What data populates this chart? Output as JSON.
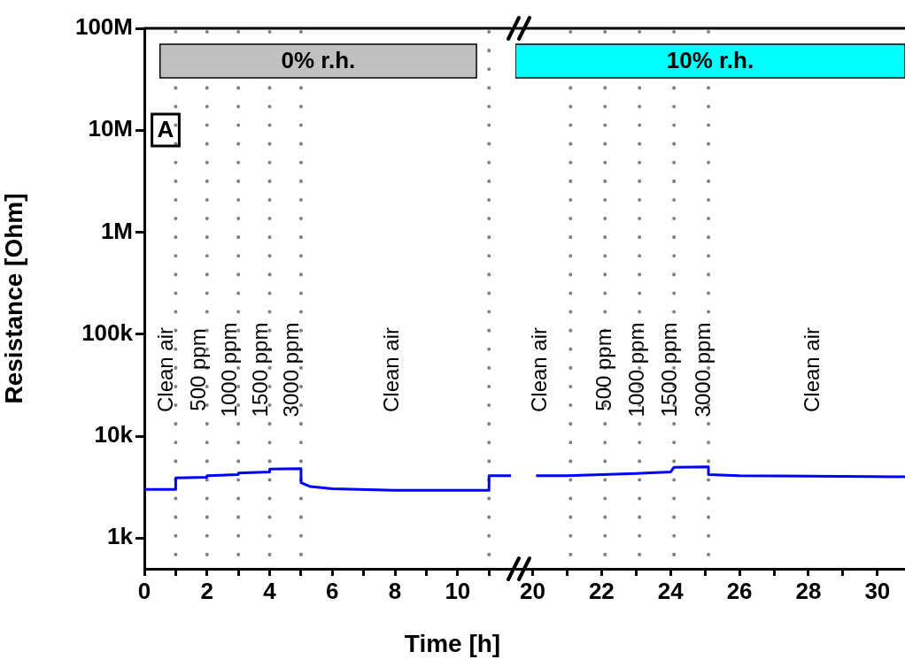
{
  "chart_data": [
    {
      "type": "line",
      "xlabel": "Time [h]",
      "ylabel": "Resistance [Ohm]",
      "log": "y",
      "grid": false,
      "marker": "none",
      "line_style": "solid",
      "xlim": [
        0,
        11.7
      ],
      "ylim": [
        500,
        100000000
      ],
      "xticks": [
        0,
        {
          "value": 1,
          "label": null
        },
        2,
        {
          "value": 3,
          "label": null
        },
        4,
        {
          "value": 5,
          "label": null
        },
        6,
        {
          "value": 7,
          "label": null
        },
        8,
        {
          "value": 9,
          "label": null
        },
        10,
        {
          "value": 11,
          "label": null
        }
      ],
      "yticks": [
        {
          "value": 1000,
          "label": "1k"
        },
        {
          "value": 10000,
          "label": "10k"
        },
        {
          "value": 100000,
          "label": "100k"
        },
        {
          "value": 1000000,
          "label": "1M"
        },
        {
          "value": 10000000,
          "label": "10M"
        },
        {
          "value": 100000000,
          "label": "100M"
        }
      ],
      "series": [
        {
          "type": "line",
          "color": "#0000ff",
          "x": [
            0,
            1,
            1,
            2,
            2,
            3,
            3,
            4,
            4,
            5,
            5,
            5.3,
            6,
            8,
            11,
            11,
            11.7
          ],
          "values": [
            3000,
            3000,
            3900,
            3950,
            4100,
            4200,
            4350,
            4450,
            4750,
            4800,
            3500,
            3200,
            3050,
            2950,
            2950,
            4100,
            4100
          ]
        }
      ],
      "ref_lines": [
        {
          "axis": "x",
          "value": 1,
          "color": "#808080",
          "line_style": "dotted"
        },
        {
          "axis": "x",
          "value": 2,
          "color": "#808080",
          "line_style": "dotted"
        },
        {
          "axis": "x",
          "value": 3,
          "color": "#808080",
          "line_style": "dotted"
        },
        {
          "axis": "x",
          "value": 4,
          "color": "#808080",
          "line_style": "dotted"
        },
        {
          "axis": "x",
          "value": 5,
          "color": "#808080",
          "line_style": "dotted"
        },
        {
          "axis": "x",
          "value": 11,
          "color": "#808080",
          "line_style": "dotted"
        }
      ],
      "bands": [
        {
          "axis": "x",
          "from": 0.5,
          "to": 10.6,
          "label": "0% r.h.",
          "color": "#c0c0c0"
        }
      ],
      "annotations": [
        "A",
        "Clean air",
        "500 ppm",
        "1000 ppm",
        "1500 ppm",
        "3000 ppm",
        "Clean air"
      ]
    },
    {
      "type": "line",
      "log": "y",
      "grid": false,
      "marker": "none",
      "line_style": "solid",
      "tick_labels": "x",
      "xlim": [
        19.5,
        30.8
      ],
      "ylim": [
        500,
        100000000
      ],
      "xticks": [
        20,
        {
          "value": 21,
          "label": null
        },
        22,
        {
          "value": 23,
          "label": null
        },
        24,
        {
          "value": 25,
          "label": null
        },
        26,
        {
          "value": 27,
          "label": null
        },
        28,
        {
          "value": 29,
          "label": null
        },
        30
      ],
      "series": [
        {
          "type": "line",
          "color": "#0000ff",
          "x": [
            20.1,
            21,
            22,
            23,
            24,
            24.1,
            25.1,
            25.1,
            26,
            28,
            30.8
          ],
          "values": [
            4100,
            4100,
            4200,
            4300,
            4450,
            4950,
            5000,
            4200,
            4100,
            4050,
            4000
          ]
        }
      ],
      "ref_lines": [
        {
          "axis": "x",
          "value": 21.1,
          "color": "#808080",
          "line_style": "dotted"
        },
        {
          "axis": "x",
          "value": 22.1,
          "color": "#808080",
          "line_style": "dotted"
        },
        {
          "axis": "x",
          "value": 23.1,
          "color": "#808080",
          "line_style": "dotted"
        },
        {
          "axis": "x",
          "value": 24.1,
          "color": "#808080",
          "line_style": "dotted"
        },
        {
          "axis": "x",
          "value": 25.1,
          "color": "#808080",
          "line_style": "dotted"
        }
      ],
      "bands": [
        {
          "axis": "x",
          "from": 19.5,
          "to": 30.8,
          "label": "10% r.h.",
          "color": "#00ffff"
        }
      ],
      "annotations": [
        "Clean air",
        "500 ppm",
        "1000 ppm",
        "1500 ppm",
        "3000 ppm",
        "Clean air"
      ]
    }
  ]
}
